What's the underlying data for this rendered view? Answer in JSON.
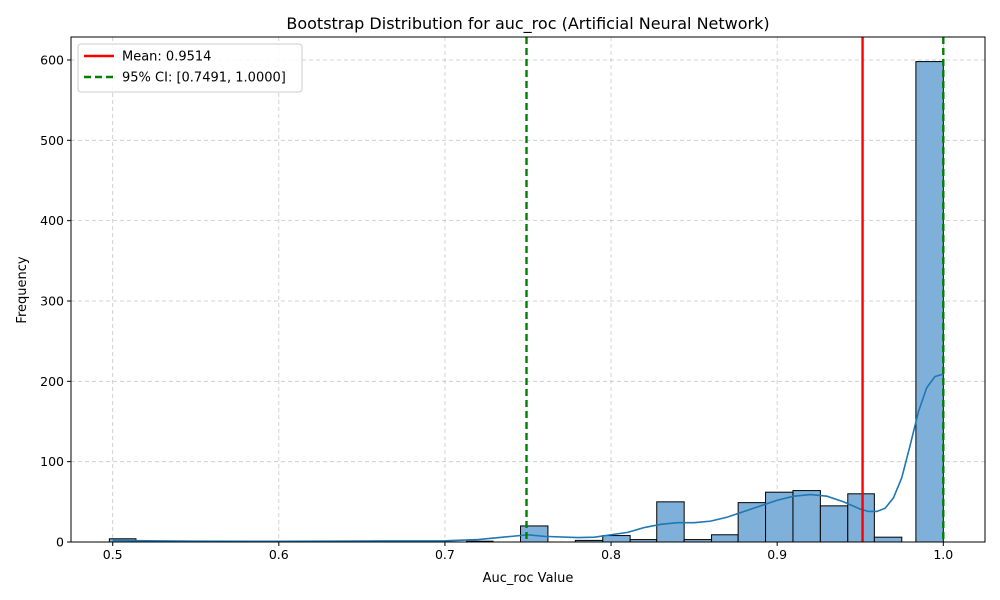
{
  "chart_data": {
    "type": "bar",
    "title": "Bootstrap Distribution for auc_roc (Artificial Neural Network)",
    "xlabel": "Auc_roc Value",
    "ylabel": "Frequency",
    "xlim": [
      0.4749,
      1.0251
    ],
    "ylim": [
      0,
      628.6
    ],
    "xticks": [
      0.5,
      0.6,
      0.7,
      0.8,
      0.9,
      1.0
    ],
    "xtick_labels": [
      "0.5",
      "0.6",
      "0.7",
      "0.8",
      "0.9",
      "1.0"
    ],
    "yticks": [
      0,
      100,
      200,
      300,
      400,
      500,
      600
    ],
    "ytick_labels": [
      "0",
      "100",
      "200",
      "300",
      "400",
      "500",
      "600"
    ],
    "grid": true,
    "legend_placement": "upper-left",
    "bar_color": "#7fb0d9",
    "bar_edge_color": "#000000",
    "bins": [
      {
        "x0": 0.498,
        "x1": 0.514,
        "count": 4
      },
      {
        "x0": 0.614,
        "x1": 0.63,
        "count": 1
      },
      {
        "x0": 0.6635,
        "x1": 0.6795,
        "count": 1
      },
      {
        "x0": 0.713,
        "x1": 0.729,
        "count": 1
      },
      {
        "x0": 0.7455,
        "x1": 0.762,
        "count": 20
      },
      {
        "x0": 0.7785,
        "x1": 0.795,
        "count": 2
      },
      {
        "x0": 0.795,
        "x1": 0.8115,
        "count": 8
      },
      {
        "x0": 0.8115,
        "x1": 0.8275,
        "count": 3
      },
      {
        "x0": 0.8275,
        "x1": 0.844,
        "count": 50
      },
      {
        "x0": 0.844,
        "x1": 0.8605,
        "count": 3
      },
      {
        "x0": 0.8605,
        "x1": 0.8765,
        "count": 9
      },
      {
        "x0": 0.8765,
        "x1": 0.893,
        "count": 49
      },
      {
        "x0": 0.893,
        "x1": 0.9095,
        "count": 62
      },
      {
        "x0": 0.9095,
        "x1": 0.926,
        "count": 64
      },
      {
        "x0": 0.926,
        "x1": 0.9425,
        "count": 45
      },
      {
        "x0": 0.9425,
        "x1": 0.9585,
        "count": 60
      },
      {
        "x0": 0.9585,
        "x1": 0.975,
        "count": 6
      },
      {
        "x0": 0.9835,
        "x1": 1.0,
        "count": 598
      }
    ],
    "kde": {
      "color": "#1f77b4",
      "points": [
        [
          0.5,
          2
        ],
        [
          0.52,
          1.5
        ],
        [
          0.55,
          1
        ],
        [
          0.6,
          0.8
        ],
        [
          0.65,
          1.2
        ],
        [
          0.7,
          1.5
        ],
        [
          0.72,
          3
        ],
        [
          0.74,
          7
        ],
        [
          0.75,
          9
        ],
        [
          0.76,
          7
        ],
        [
          0.78,
          5.5
        ],
        [
          0.79,
          6
        ],
        [
          0.8,
          9
        ],
        [
          0.81,
          12
        ],
        [
          0.82,
          18
        ],
        [
          0.83,
          22
        ],
        [
          0.84,
          24
        ],
        [
          0.85,
          24
        ],
        [
          0.86,
          26
        ],
        [
          0.87,
          31
        ],
        [
          0.88,
          38
        ],
        [
          0.89,
          45
        ],
        [
          0.9,
          52
        ],
        [
          0.91,
          57
        ],
        [
          0.92,
          59
        ],
        [
          0.93,
          57
        ],
        [
          0.94,
          50
        ],
        [
          0.95,
          41
        ],
        [
          0.955,
          38
        ],
        [
          0.96,
          38
        ],
        [
          0.965,
          42
        ],
        [
          0.97,
          55
        ],
        [
          0.975,
          80
        ],
        [
          0.98,
          120
        ],
        [
          0.985,
          162
        ],
        [
          0.99,
          192
        ],
        [
          0.995,
          206
        ],
        [
          1.0,
          209
        ]
      ]
    },
    "reference_lines": [
      {
        "name": "Mean: 0.9514",
        "x": 0.9514,
        "color": "#ff0000",
        "style": "solid"
      },
      {
        "name": "95% CI: [0.7491, 1.0000]",
        "x": 0.7491,
        "color": "#008000",
        "style": "dashed"
      },
      {
        "name": "95% CI: [0.7491, 1.0000]",
        "x": 1.0,
        "color": "#008000",
        "style": "dashed"
      }
    ],
    "legend": [
      {
        "label": "Mean: 0.9514",
        "color": "#ff0000",
        "style": "solid"
      },
      {
        "label": "95% CI: [0.7491, 1.0000]",
        "color": "#008000",
        "style": "dashed"
      }
    ]
  }
}
